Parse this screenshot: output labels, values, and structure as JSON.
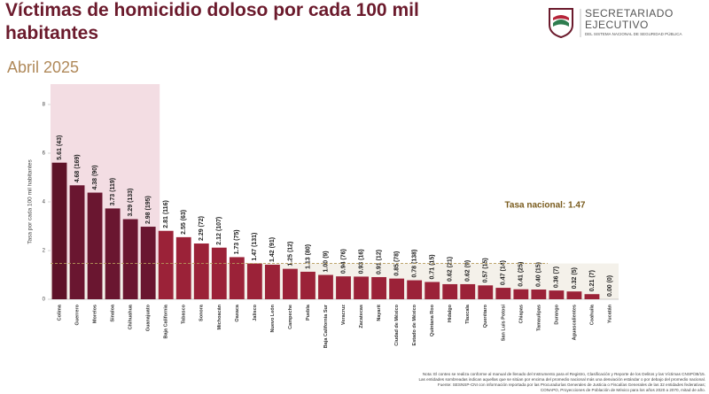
{
  "chart_data": {
    "type": "bar",
    "title": [
      "Víctimas de homicidio doloso por cada 100 mil",
      "habitantes"
    ],
    "subtitle": "Abril 2025",
    "y_label": "Tasa por cada 100 mil habitantes",
    "annotation": "Tasa nacional: 1.47",
    "national_rate": 1.47,
    "categories": [
      "Colima",
      "Guerrero",
      "Morelos",
      "Sinaloa",
      "Chihuahua",
      "Guanajuato",
      "Baja California",
      "Tabasco",
      "Sonora",
      "Michoacán",
      "Oaxaca",
      "Jalisco",
      "Nuevo León",
      "Campeche",
      "Puebla",
      "Baja California Sur",
      "Veracruz",
      "Zacatecas",
      "Nayarit",
      "Ciudad de México",
      "Estado de México",
      "Quintana Roo",
      "Hidalgo",
      "Tlaxcala",
      "Querétaro",
      "San Luis Potosí",
      "Chiapas",
      "Tamaulipas",
      "Durango",
      "Aguascalientes",
      "Coahuila",
      "Yucatán"
    ],
    "values": [
      5.61,
      4.68,
      4.38,
      3.73,
      3.29,
      2.98,
      2.81,
      2.55,
      2.29,
      2.12,
      1.73,
      1.47,
      1.42,
      1.25,
      1.13,
      1.0,
      0.94,
      0.93,
      0.91,
      0.85,
      0.78,
      0.71,
      0.62,
      0.62,
      0.57,
      0.47,
      0.41,
      0.4,
      0.36,
      0.32,
      0.21,
      0.0
    ],
    "value_labels": [
      "5.61 (43)",
      "4.68 (169)",
      "4.38 (90)",
      "3.73 (119)",
      "3.29 (133)",
      "2.98 (195)",
      "2.81 (116)",
      "2.55 (63)",
      "2.29 (72)",
      "2.12 (107)",
      "1.73 (75)",
      "1.47 (131)",
      "1.42 (91)",
      "1.25 (12)",
      "1.13 (80)",
      "1.00 (9)",
      "0.94 (76)",
      "0.93 (16)",
      "0.91 (12)",
      "0.85 (78)",
      "0.78 (138)",
      "0.71 (15)",
      "0.62 (21)",
      "0.62 (9)",
      "0.57 (15)",
      "0.47 (14)",
      "0.41 (25)",
      "0.40 (15)",
      "0.36 (7)",
      "0.32 (5)",
      "0.21 (7)",
      "0.00 (0)"
    ],
    "colors": [
      "#5e1228",
      "#6a1630",
      "#6a1630",
      "#6a1630",
      "#6a1630",
      "#6a1630",
      "#9b2238",
      "#9b2238",
      "#9b2238",
      "#9b2238",
      "#9b2238",
      "#9b2238",
      "#9b2238",
      "#9b2238",
      "#9b2238",
      "#9b2238",
      "#9b2238",
      "#9b2238",
      "#9b2238",
      "#9b2238",
      "#9b2238",
      "#9b2238",
      "#9b2238",
      "#9b2238",
      "#9b2238",
      "#9b2238",
      "#9b2238",
      "#9b2238",
      "#9b2238",
      "#9b2238",
      "#9b2238",
      "#9b2238"
    ],
    "ylim": [
      0,
      8
    ],
    "yticks": [
      0,
      2,
      4,
      6,
      8
    ]
  },
  "logo": {
    "line1": "SECRETARIADO",
    "line2": "EJECUTIVO",
    "line3": "DEL SISTEMA NACIONAL DE SEGURIDAD PÚBLICA"
  },
  "footnote": [
    "Nota: El conteo se realiza conforme al manual de llenado del Instrumento para el Registro, Clasificación y Reporte de los Delitos y las Víctimas CNSP/38/15.",
    "Las entidades sombreadas indican aquellas que se sitúan por encima del promedio nacional más una desviación estándar o por debajo del promedio nacional.",
    "Fuente: SESNSP-CNI con información reportada por las Procuradurías Generales de Justicia o Fiscalías Generales de las 32 entidades federativas;",
    "CONAPO, Proyecciones de Población de México para los años 2020 a 2070, mitad de año."
  ]
}
